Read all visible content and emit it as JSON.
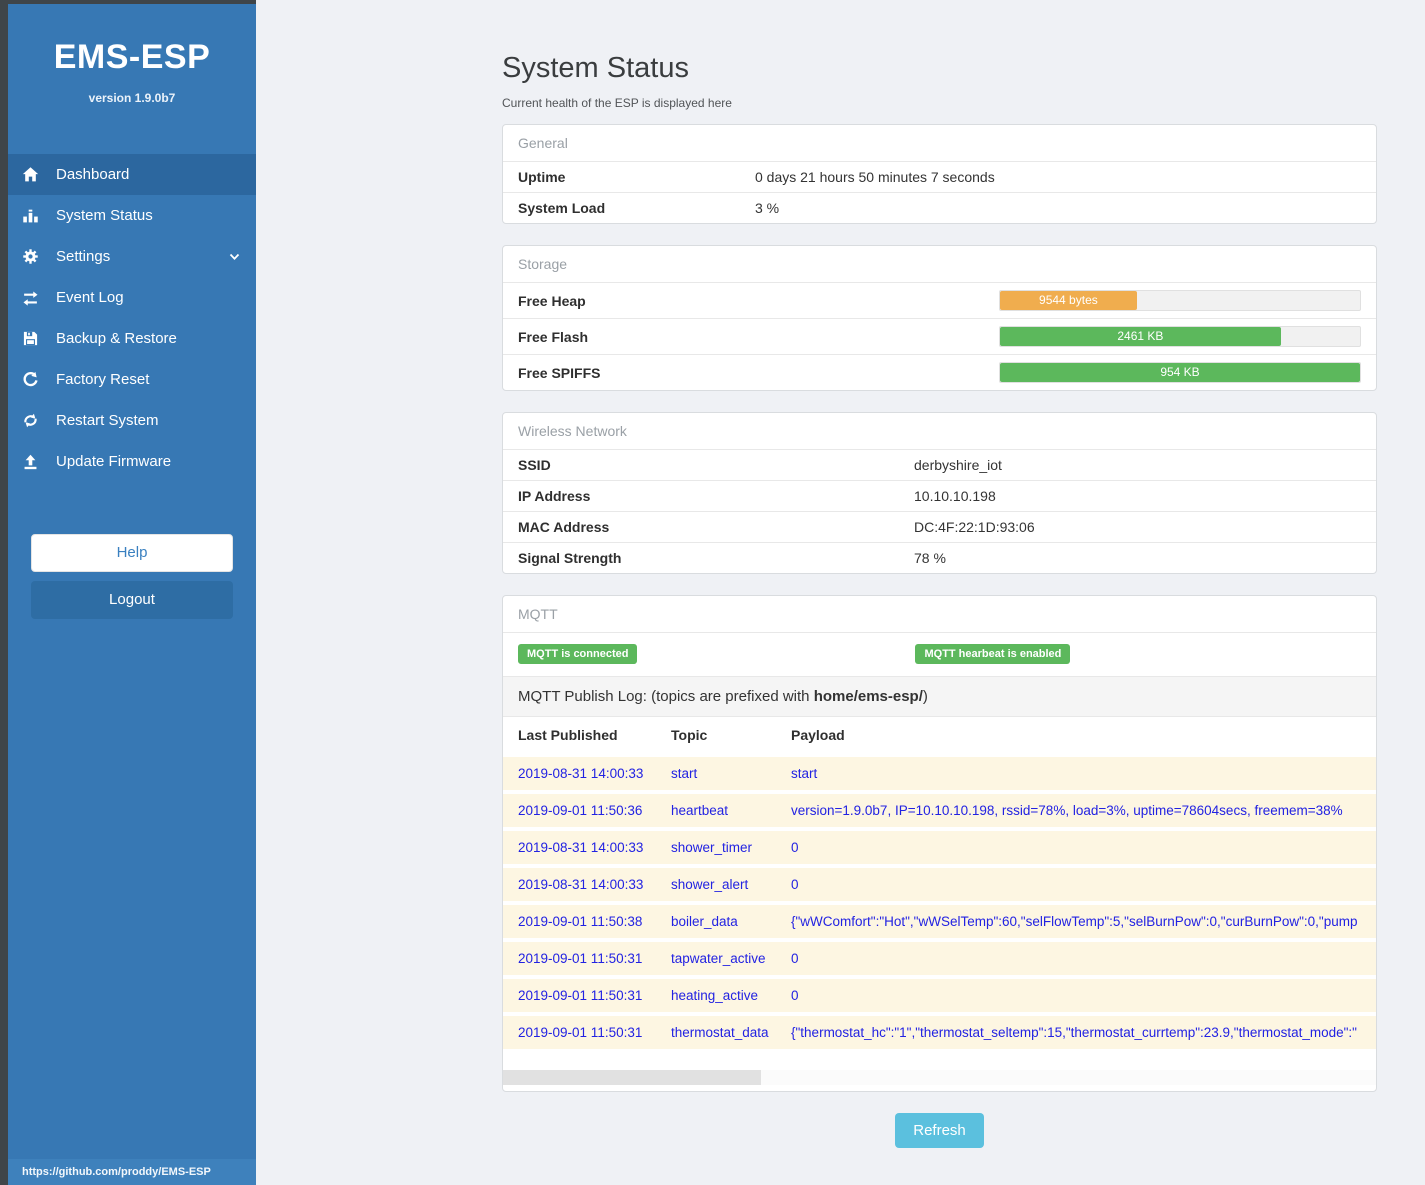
{
  "sidebar": {
    "brand": "EMS-ESP",
    "version": "version 1.9.0b7",
    "items": [
      {
        "label": "Dashboard",
        "icon": "home-icon",
        "active": true
      },
      {
        "label": "System Status",
        "icon": "system-status-icon",
        "active": false
      },
      {
        "label": "Settings",
        "icon": "gear-icon",
        "active": false,
        "has_submenu": true
      },
      {
        "label": "Event Log",
        "icon": "exchange-icon",
        "active": false
      },
      {
        "label": "Backup & Restore",
        "icon": "save-icon",
        "active": false
      },
      {
        "label": "Factory Reset",
        "icon": "factory-reset-icon",
        "active": false
      },
      {
        "label": "Restart System",
        "icon": "restart-icon",
        "active": false
      },
      {
        "label": "Update Firmware",
        "icon": "upload-icon",
        "active": false
      }
    ],
    "help_label": "Help",
    "logout_label": "Logout",
    "footer_link": "https://github.com/proddy/EMS-ESP"
  },
  "page": {
    "title": "System Status",
    "subtitle": "Current health of the ESP is displayed here"
  },
  "panels": {
    "general": {
      "title": "General",
      "rows": [
        {
          "label": "Uptime",
          "value": "0 days 21 hours 50 minutes 7 seconds"
        },
        {
          "label": "System Load",
          "value": "3 %"
        }
      ]
    },
    "storage": {
      "title": "Storage",
      "rows": [
        {
          "label": "Free Heap",
          "value": "9544 bytes",
          "percent": 38,
          "color": "#f0ad4e"
        },
        {
          "label": "Free Flash",
          "value": "2461 KB",
          "percent": 78,
          "color": "#5cb85c"
        },
        {
          "label": "Free SPIFFS",
          "value": "954 KB",
          "percent": 100,
          "color": "#5cb85c"
        }
      ]
    },
    "wireless": {
      "title": "Wireless Network",
      "rows": [
        {
          "label": "SSID",
          "value": "derbyshire_iot"
        },
        {
          "label": "IP Address",
          "value": "10.10.10.198"
        },
        {
          "label": "MAC Address",
          "value": "DC:4F:22:1D:93:06"
        },
        {
          "label": "Signal Strength",
          "value": "78 %"
        }
      ]
    },
    "mqtt": {
      "title": "MQTT",
      "badges": [
        "MQTT is connected",
        "MQTT hearbeat is enabled"
      ],
      "publish_log_prefix": "MQTT Publish Log: (topics are prefixed with ",
      "publish_log_bold": "home/ems-esp/",
      "publish_log_suffix": ")",
      "table": {
        "headers": [
          "Last Published",
          "Topic",
          "Payload"
        ],
        "rows": [
          [
            "2019-08-31 14:00:33",
            "start",
            "start"
          ],
          [
            "2019-09-01 11:50:36",
            "heartbeat",
            "version=1.9.0b7, IP=10.10.10.198, rssid=78%, load=3%, uptime=78604secs, freemem=38%"
          ],
          [
            "2019-08-31 14:00:33",
            "shower_timer",
            "0"
          ],
          [
            "2019-08-31 14:00:33",
            "shower_alert",
            "0"
          ],
          [
            "2019-09-01 11:50:38",
            "boiler_data",
            "{\"wWComfort\":\"Hot\",\"wWSelTemp\":60,\"selFlowTemp\":5,\"selBurnPow\":0,\"curBurnPow\":0,\"pump"
          ],
          [
            "2019-09-01 11:50:31",
            "tapwater_active",
            "0"
          ],
          [
            "2019-09-01 11:50:31",
            "heating_active",
            "0"
          ],
          [
            "2019-09-01 11:50:31",
            "thermostat_data",
            "{\"thermostat_hc\":\"1\",\"thermostat_seltemp\":15,\"thermostat_currtemp\":23.9,\"thermostat_mode\":\""
          ]
        ]
      }
    }
  },
  "refresh_label": "Refresh",
  "colors": {
    "sidebar": "#3778b4",
    "sidebar_active": "#2c679f",
    "success": "#5cb85c",
    "warning": "#f0ad4e",
    "info": "#5bc0de"
  }
}
